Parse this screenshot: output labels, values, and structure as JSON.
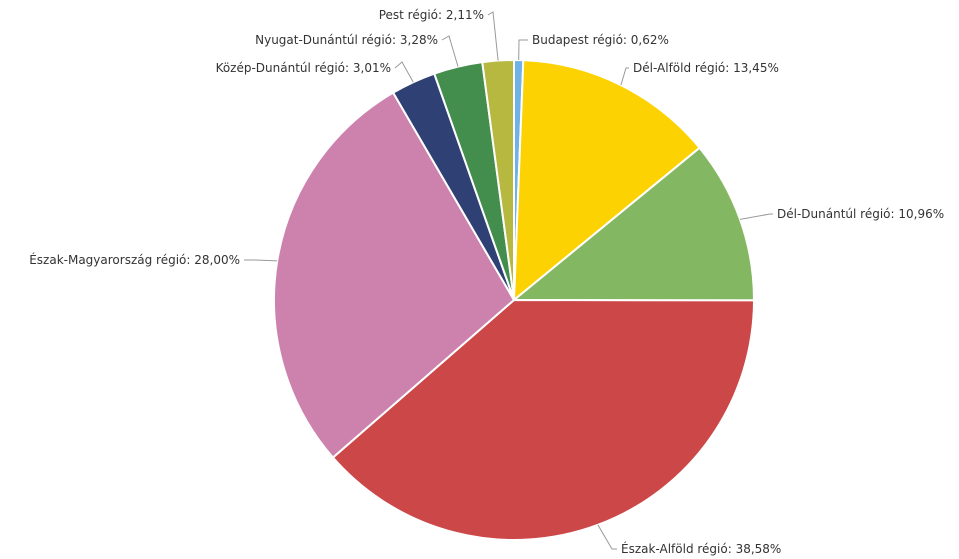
{
  "chart_data": {
    "type": "pie",
    "title": "",
    "slices": [
      {
        "label": "Budapest régió",
        "value": 0.62,
        "display": "0,62%",
        "color": "#6fb3e6"
      },
      {
        "label": "Dél-Alföld régió",
        "value": 13.45,
        "display": "13,45%",
        "color": "#fcd202"
      },
      {
        "label": "Dél-Dunántúl régió",
        "value": 10.96,
        "display": "10,96%",
        "color": "#84b761"
      },
      {
        "label": "Észak-Alföld régió",
        "value": 38.58,
        "display": "38,58%",
        "color": "#cc4748"
      },
      {
        "label": "Észak-Magyarország régió",
        "value": 28.0,
        "display": "28,00%",
        "color": "#cd82ad"
      },
      {
        "label": "Közép-Dunántúl régió",
        "value": 3.01,
        "display": "3,01%",
        "color": "#2f4074"
      },
      {
        "label": "Nyugat-Dunántúl régió",
        "value": 3.28,
        "display": "3,28%",
        "color": "#448e4d"
      },
      {
        "label": "Pest régió",
        "value": 2.11,
        "display": "2,11%",
        "color": "#b7b83f"
      }
    ],
    "start_angle": "12 o'clock",
    "direction": "clockwise",
    "legend": "none"
  }
}
